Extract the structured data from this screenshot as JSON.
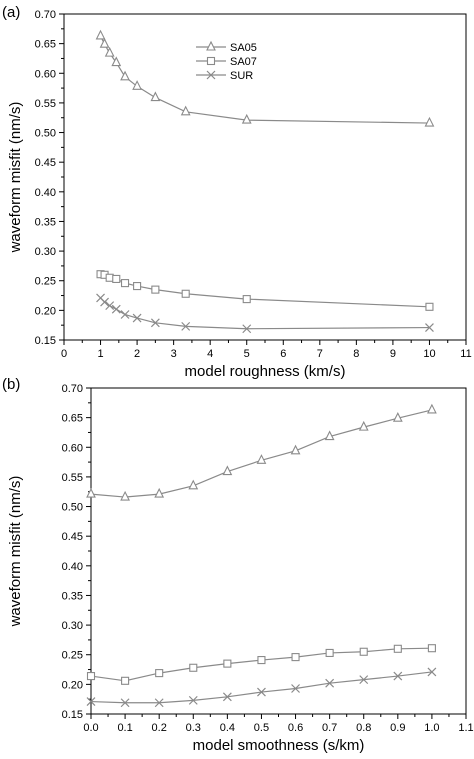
{
  "chart_data": [
    {
      "panel_label": "(a)",
      "type": "line",
      "xlabel": "model roughness (km/s)",
      "ylabel": "waveform misfit (nm/s)",
      "xlim": [
        0,
        11
      ],
      "ylim": [
        0.15,
        0.7
      ],
      "xticks": [
        "0",
        "1",
        "2",
        "3",
        "4",
        "5",
        "6",
        "7",
        "8",
        "9",
        "10",
        "11"
      ],
      "yticks": [
        "0.15",
        "0.20",
        "0.25",
        "0.30",
        "0.35",
        "0.40",
        "0.45",
        "0.50",
        "0.55",
        "0.60",
        "0.65",
        "0.70"
      ],
      "legend": [
        "SA05",
        "SA07",
        "SUR"
      ],
      "legend_position": "upper-center",
      "series": [
        {
          "name": "SA05",
          "marker": "triangle",
          "x": [
            1.0,
            1.11,
            1.25,
            1.43,
            1.67,
            2.0,
            2.5,
            3.33,
            5.0,
            10.0
          ],
          "y": [
            0.663,
            0.649,
            0.634,
            0.618,
            0.594,
            0.578,
            0.559,
            0.535,
            0.521,
            0.516
          ]
        },
        {
          "name": "SA07",
          "marker": "square",
          "x": [
            1.0,
            1.11,
            1.25,
            1.43,
            1.67,
            2.0,
            2.5,
            3.33,
            5.0,
            10.0
          ],
          "y": [
            0.261,
            0.26,
            0.255,
            0.253,
            0.246,
            0.241,
            0.235,
            0.228,
            0.219,
            0.206
          ]
        },
        {
          "name": "SUR",
          "marker": "x",
          "x": [
            1.0,
            1.11,
            1.25,
            1.43,
            1.67,
            2.0,
            2.5,
            3.33,
            5.0,
            10.0
          ],
          "y": [
            0.221,
            0.214,
            0.208,
            0.202,
            0.193,
            0.187,
            0.179,
            0.173,
            0.169,
            0.171
          ]
        }
      ]
    },
    {
      "panel_label": "(b)",
      "type": "line",
      "xlabel": "model smoothness (s/km)",
      "ylabel": "waveform misfit (nm/s)",
      "xlim": [
        0.0,
        1.1
      ],
      "ylim": [
        0.15,
        0.7
      ],
      "xticks": [
        "0.0",
        "0.1",
        "0.2",
        "0.3",
        "0.4",
        "0.5",
        "0.6",
        "0.7",
        "0.8",
        "0.9",
        "1.0",
        "1.1"
      ],
      "yticks": [
        "0.15",
        "0.20",
        "0.25",
        "0.30",
        "0.35",
        "0.40",
        "0.45",
        "0.50",
        "0.55",
        "0.60",
        "0.65",
        "0.70"
      ],
      "series": [
        {
          "name": "SA05",
          "marker": "triangle",
          "x": [
            0.0,
            0.1,
            0.2,
            0.3,
            0.4,
            0.5,
            0.6,
            0.7,
            0.8,
            0.9,
            1.0
          ],
          "y": [
            0.521,
            0.516,
            0.521,
            0.535,
            0.559,
            0.578,
            0.594,
            0.618,
            0.634,
            0.649,
            0.663
          ]
        },
        {
          "name": "SA07",
          "marker": "square",
          "x": [
            0.0,
            0.1,
            0.2,
            0.3,
            0.4,
            0.5,
            0.6,
            0.7,
            0.8,
            0.9,
            1.0
          ],
          "y": [
            0.214,
            0.206,
            0.219,
            0.228,
            0.235,
            0.241,
            0.246,
            0.253,
            0.255,
            0.26,
            0.261
          ]
        },
        {
          "name": "SUR",
          "marker": "x",
          "x": [
            0.0,
            0.1,
            0.2,
            0.3,
            0.4,
            0.5,
            0.6,
            0.7,
            0.8,
            0.9,
            1.0
          ],
          "y": [
            0.171,
            0.169,
            0.169,
            0.173,
            0.179,
            0.187,
            0.193,
            0.202,
            0.208,
            0.214,
            0.221
          ]
        }
      ]
    }
  ],
  "colors": {
    "line": "#8a8a8a",
    "axis": "#000000"
  }
}
